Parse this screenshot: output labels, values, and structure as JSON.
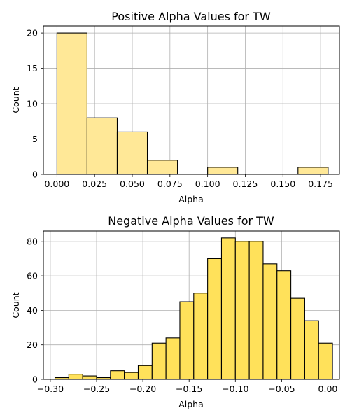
{
  "chart_data": [
    {
      "type": "bar",
      "title": "Positive Alpha Values for TW",
      "xlabel": "Alpha",
      "ylabel": "Count",
      "xlim": [
        -0.009,
        0.1875
      ],
      "ylim": [
        0,
        21
      ],
      "grid": true,
      "bar_color": "#ffe897",
      "edge_color": "#000000",
      "xticks": [
        0.0,
        0.025,
        0.05,
        0.075,
        0.1,
        0.125,
        0.15,
        0.175
      ],
      "xtick_labels": [
        "0.000",
        "0.025",
        "0.050",
        "0.075",
        "0.100",
        "0.125",
        "0.150",
        "0.175"
      ],
      "yticks": [
        0,
        5,
        10,
        15,
        20
      ],
      "ytick_labels": [
        "0",
        "5",
        "10",
        "15",
        "20"
      ],
      "bins": [
        {
          "x0": 0.0,
          "x1": 0.02,
          "count": 20
        },
        {
          "x0": 0.02,
          "x1": 0.04,
          "count": 8
        },
        {
          "x0": 0.04,
          "x1": 0.06,
          "count": 6
        },
        {
          "x0": 0.06,
          "x1": 0.08,
          "count": 2
        },
        {
          "x0": 0.08,
          "x1": 0.1,
          "count": 0
        },
        {
          "x0": 0.1,
          "x1": 0.12,
          "count": 1
        },
        {
          "x0": 0.12,
          "x1": 0.14,
          "count": 0
        },
        {
          "x0": 0.14,
          "x1": 0.16,
          "count": 0
        },
        {
          "x0": 0.16,
          "x1": 0.18,
          "count": 1
        }
      ]
    },
    {
      "type": "bar",
      "title": "Negative Alpha Values for TW",
      "xlabel": "Alpha",
      "ylabel": "Count",
      "xlim": [
        -0.3075,
        0.0125
      ],
      "ylim": [
        0,
        86
      ],
      "grid": true,
      "bar_color": "#ffe15a",
      "edge_color": "#000000",
      "xticks": [
        -0.3,
        -0.25,
        -0.2,
        -0.15,
        -0.1,
        -0.05,
        0.0
      ],
      "xtick_labels": [
        "−0.30",
        "−0.25",
        "−0.20",
        "−0.15",
        "−0.10",
        "−0.05",
        "0.00"
      ],
      "yticks": [
        0,
        20,
        40,
        60,
        80
      ],
      "ytick_labels": [
        "0",
        "20",
        "40",
        "60",
        "80"
      ],
      "bins": [
        {
          "x0": -0.295,
          "x1": -0.28,
          "count": 1
        },
        {
          "x0": -0.28,
          "x1": -0.265,
          "count": 3
        },
        {
          "x0": -0.265,
          "x1": -0.25,
          "count": 2
        },
        {
          "x0": -0.25,
          "x1": -0.235,
          "count": 1
        },
        {
          "x0": -0.235,
          "x1": -0.22,
          "count": 5
        },
        {
          "x0": -0.22,
          "x1": -0.205,
          "count": 4
        },
        {
          "x0": -0.205,
          "x1": -0.19,
          "count": 8
        },
        {
          "x0": -0.19,
          "x1": -0.175,
          "count": 21
        },
        {
          "x0": -0.175,
          "x1": -0.16,
          "count": 24
        },
        {
          "x0": -0.16,
          "x1": -0.145,
          "count": 45
        },
        {
          "x0": -0.145,
          "x1": -0.13,
          "count": 50
        },
        {
          "x0": -0.13,
          "x1": -0.115,
          "count": 70
        },
        {
          "x0": -0.115,
          "x1": -0.1,
          "count": 82
        },
        {
          "x0": -0.1,
          "x1": -0.085,
          "count": 80
        },
        {
          "x0": -0.085,
          "x1": -0.07,
          "count": 80
        },
        {
          "x0": -0.07,
          "x1": -0.055,
          "count": 67
        },
        {
          "x0": -0.055,
          "x1": -0.04,
          "count": 63
        },
        {
          "x0": -0.04,
          "x1": -0.025,
          "count": 47
        },
        {
          "x0": -0.025,
          "x1": -0.01,
          "count": 34
        },
        {
          "x0": -0.01,
          "x1": 0.005,
          "count": 21
        }
      ]
    }
  ]
}
